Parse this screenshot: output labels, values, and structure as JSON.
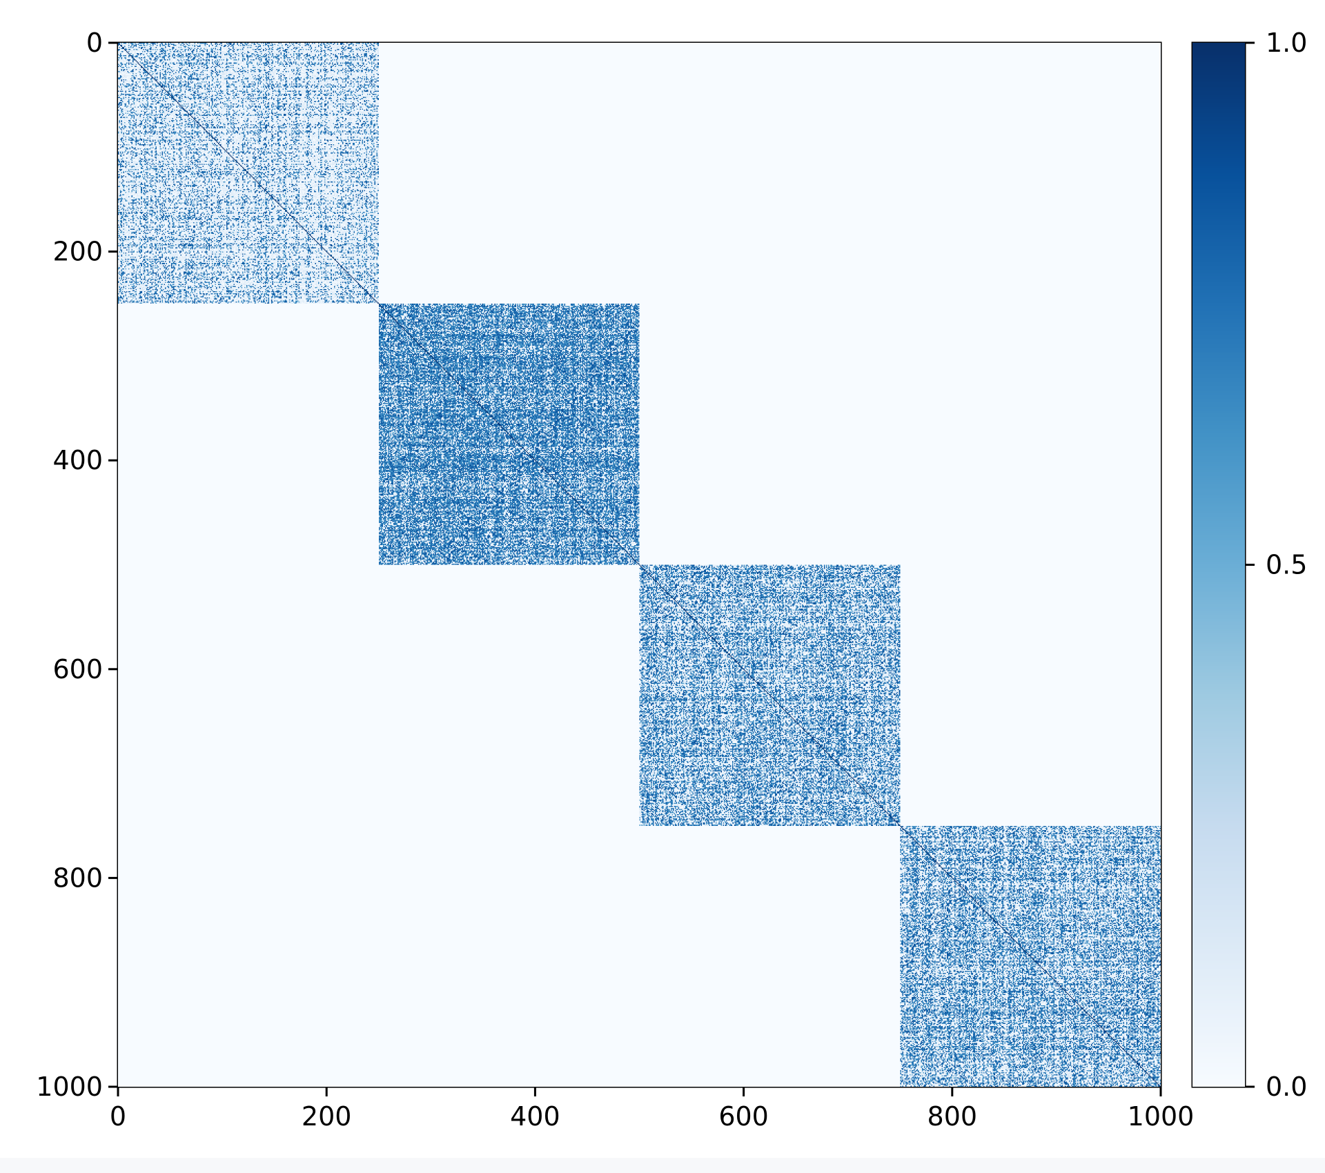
{
  "chart_data": {
    "type": "heatmap",
    "title": "",
    "xlabel": "",
    "ylabel": "",
    "xlim": [
      0,
      1000
    ],
    "ylim": [
      1000,
      0
    ],
    "x_ticks": [
      0,
      200,
      400,
      600,
      800,
      1000
    ],
    "y_ticks": [
      0,
      200,
      400,
      600,
      800,
      1000
    ],
    "colorbar": {
      "colormap": "Blues",
      "range": [
        0.0,
        1.0
      ],
      "ticks": [
        0.0,
        0.5,
        1.0
      ],
      "tick_labels": [
        "0.0",
        "0.5",
        "1.0"
      ],
      "colors": [
        "#f7fbff",
        "#deebf7",
        "#c6dbef",
        "#9ecae1",
        "#6baed6",
        "#4292c6",
        "#2171b5",
        "#08519c",
        "#08306b"
      ]
    },
    "matrix_size": 1000,
    "off_block_value": 0.0,
    "diagonal_value": 1.0,
    "blocks": [
      {
        "rows": [
          0,
          250
        ],
        "cols": [
          0,
          250
        ],
        "mean_value": 0.25
      },
      {
        "rows": [
          250,
          500
        ],
        "cols": [
          250,
          500
        ],
        "mean_value": 0.65
      },
      {
        "rows": [
          500,
          750
        ],
        "cols": [
          500,
          750
        ],
        "mean_value": 0.45
      },
      {
        "rows": [
          750,
          1000
        ],
        "cols": [
          750,
          1000
        ],
        "mean_value": 0.45
      }
    ]
  }
}
